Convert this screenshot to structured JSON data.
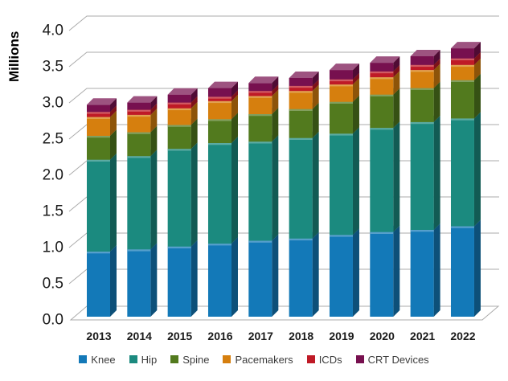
{
  "chart_data": {
    "type": "bar",
    "subtype": "3d-stacked-column",
    "title": "",
    "ylabel": "Millions",
    "xlabel": "",
    "ylim": [
      0,
      4.0
    ],
    "ytick_step": 0.5,
    "yticks": [
      "0.0",
      "0.5",
      "1.0",
      "1.5",
      "2.0",
      "2.5",
      "3.0",
      "3.5",
      "4.0"
    ],
    "grid": true,
    "gridline_color": "#ABABAB",
    "background_color": "#FFFFFF",
    "axis_text_color": "#1A1A1A",
    "legend_position": "bottom",
    "categories": [
      "2013",
      "2014",
      "2015",
      "2016",
      "2017",
      "2018",
      "2019",
      "2020",
      "2021",
      "2022"
    ],
    "series": [
      {
        "name": "Knee",
        "color": "#1379B8",
        "values": [
          0.9,
          0.93,
          0.97,
          1.01,
          1.05,
          1.08,
          1.13,
          1.17,
          1.2,
          1.25
        ]
      },
      {
        "name": "Hip",
        "color": "#1B8A7F",
        "values": [
          1.27,
          1.29,
          1.35,
          1.39,
          1.37,
          1.39,
          1.4,
          1.44,
          1.49,
          1.49
        ]
      },
      {
        "name": "Spine",
        "color": "#527A1E",
        "values": [
          0.33,
          0.33,
          0.33,
          0.33,
          0.38,
          0.4,
          0.44,
          0.46,
          0.47,
          0.53
        ]
      },
      {
        "name": "Pacemakers",
        "color": "#D67F0E",
        "values": [
          0.26,
          0.24,
          0.23,
          0.25,
          0.25,
          0.25,
          0.24,
          0.24,
          0.25,
          0.21
        ]
      },
      {
        "name": "ICDs",
        "color": "#BF1A26",
        "values": [
          0.07,
          0.07,
          0.08,
          0.06,
          0.07,
          0.07,
          0.07,
          0.08,
          0.07,
          0.09
        ]
      },
      {
        "name": "CRT Devices",
        "color": "#77104F",
        "values": [
          0.1,
          0.1,
          0.11,
          0.12,
          0.11,
          0.11,
          0.13,
          0.12,
          0.12,
          0.14
        ]
      }
    ],
    "totals": [
      2.93,
      2.96,
      3.07,
      3.16,
      3.23,
      3.3,
      3.41,
      3.51,
      3.6,
      3.71
    ]
  }
}
